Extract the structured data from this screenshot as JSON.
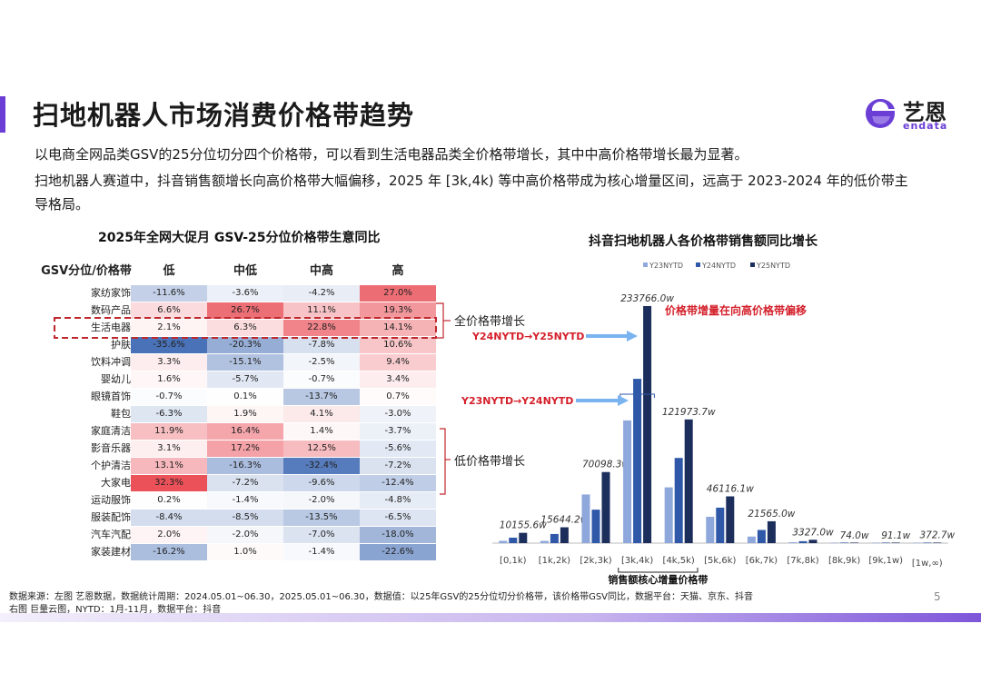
{
  "header": {
    "title": "扫地机器人市场消费价格带趋势",
    "logo_cn": "艺恩",
    "logo_en": "endata"
  },
  "description": {
    "line1": "以电商全网品类GSV的25分位切分四个价格带，可以看到生活电器品类全价格带增长，其中中高价格带增长最为显著。",
    "line2": "扫地机器人赛道中，抖音销售额增长向高价格带大幅偏移，2025 年 [3k,4k) 等中高价格带成为核心增量区间，远高于 2023-2024 年的低价带主",
    "line3": "导格局。"
  },
  "heatmap": {
    "title": "2025年全网大促月 GSV-25分位价格带生意同比",
    "corner_label": "GSV分位/价格带",
    "columns": [
      "低",
      "中低",
      "中高",
      "高"
    ],
    "rows": [
      {
        "label": "家纺家饰",
        "values": [
          "-11.6%",
          "-3.6%",
          "-4.2%",
          "27.0%"
        ],
        "nums": [
          -11.6,
          -3.6,
          -4.2,
          27.0
        ]
      },
      {
        "label": "数码产品",
        "values": [
          "6.6%",
          "26.7%",
          "11.1%",
          "19.3%"
        ],
        "nums": [
          6.6,
          26.7,
          11.1,
          19.3
        ]
      },
      {
        "label": "生活电器",
        "values": [
          "2.1%",
          "6.3%",
          "22.8%",
          "14.1%"
        ],
        "nums": [
          2.1,
          6.3,
          22.8,
          14.1
        ]
      },
      {
        "label": "护肤",
        "values": [
          "-35.6%",
          "-20.3%",
          "-7.8%",
          "10.6%"
        ],
        "nums": [
          -35.6,
          -20.3,
          -7.8,
          10.6
        ]
      },
      {
        "label": "饮料冲调",
        "values": [
          "3.3%",
          "-15.1%",
          "-2.5%",
          "9.4%"
        ],
        "nums": [
          3.3,
          -15.1,
          -2.5,
          9.4
        ]
      },
      {
        "label": "婴幼儿",
        "values": [
          "1.6%",
          "-5.7%",
          "-0.7%",
          "3.4%"
        ],
        "nums": [
          1.6,
          -5.7,
          -0.7,
          3.4
        ]
      },
      {
        "label": "眼镜首饰",
        "values": [
          "-0.7%",
          "0.1%",
          "-13.7%",
          "0.7%"
        ],
        "nums": [
          -0.7,
          0.1,
          -13.7,
          0.7
        ]
      },
      {
        "label": "鞋包",
        "values": [
          "-6.3%",
          "1.9%",
          "4.1%",
          "-3.0%"
        ],
        "nums": [
          -6.3,
          1.9,
          4.1,
          -3.0
        ]
      },
      {
        "label": "家庭清洁",
        "values": [
          "11.9%",
          "16.4%",
          "1.4%",
          "-3.7%"
        ],
        "nums": [
          11.9,
          16.4,
          1.4,
          -3.7
        ]
      },
      {
        "label": "影音乐器",
        "values": [
          "3.1%",
          "17.2%",
          "12.5%",
          "-5.6%"
        ],
        "nums": [
          3.1,
          17.2,
          12.5,
          -5.6
        ]
      },
      {
        "label": "个护清洁",
        "values": [
          "13.1%",
          "-16.3%",
          "-32.4%",
          "-7.2%"
        ],
        "nums": [
          13.1,
          -16.3,
          -32.4,
          -7.2
        ]
      },
      {
        "label": "大家电",
        "values": [
          "32.3%",
          "-7.2%",
          "-9.6%",
          "-12.4%"
        ],
        "nums": [
          32.3,
          -7.2,
          -9.6,
          -12.4
        ]
      },
      {
        "label": "运动服饰",
        "values": [
          "0.2%",
          "-1.4%",
          "-2.0%",
          "-4.8%"
        ],
        "nums": [
          0.2,
          -1.4,
          -2.0,
          -4.8
        ]
      },
      {
        "label": "服装配饰",
        "values": [
          "-8.4%",
          "-8.5%",
          "-13.5%",
          "-6.5%"
        ],
        "nums": [
          -8.4,
          -8.5,
          -13.5,
          -6.5
        ]
      },
      {
        "label": "汽车汽配",
        "values": [
          "2.0%",
          "-2.0%",
          "-7.0%",
          "-18.0%"
        ],
        "nums": [
          2.0,
          -2.0,
          -7.0,
          -18.0
        ]
      },
      {
        "label": "家装建材",
        "values": [
          "-16.2%",
          "1.0%",
          "-1.4%",
          "-22.6%"
        ],
        "nums": [
          -16.2,
          1.0,
          -1.4,
          -22.6
        ]
      }
    ],
    "bracket_top_label": "全价格带增长",
    "bracket_bottom_label": "低价格带增长",
    "colors": {
      "positive_max": "#e8424b",
      "negative_max": "#4a72b8",
      "neutral": "#ffffff"
    }
  },
  "chart_data": {
    "type": "bar",
    "title": "抖音扫地机器人各价格带销售额同比增长",
    "categories": [
      "[0,1k)",
      "[1k,2k)",
      "[2k,3k)",
      "[3k,4k)",
      "[4k,5k)",
      "[5k,6k)",
      "[6k,7k)",
      "[7k,8k)",
      "[8k,9k)",
      "[9k,1w)",
      "[1w,∞)"
    ],
    "series": [
      {
        "name": "Y23NYTD",
        "color": "#8fa8dc",
        "values": [
          2300,
          2200,
          48000,
          121000,
          55000,
          26000,
          6500,
          900,
          200,
          100,
          100
        ]
      },
      {
        "name": "Y24NYTD",
        "color": "#2f58a8",
        "values": [
          5400,
          9000,
          33000,
          162000,
          84000,
          35000,
          13000,
          1900,
          400,
          300,
          300
        ]
      },
      {
        "name": "Y25NYTD",
        "color": "#1c2e5c",
        "values": [
          10155.6,
          15644.2,
          70098.3,
          233766.0,
          121973.7,
          46116.1,
          21565.0,
          3327.0,
          74.0,
          91.1,
          372.7
        ]
      }
    ],
    "data_labels": [
      "10155.6w",
      "15644.2w",
      "70098.3w",
      "233766.0w",
      "121973.7w",
      "46116.1w",
      "21565.0w",
      "3327.0w",
      "74.0w",
      "91.1w",
      "372.7w"
    ],
    "ylim": [
      0,
      240000
    ],
    "legend": "top",
    "annotations": {
      "shift": "价格带增量在向高价格带偏移",
      "y24_y25": "Y24NYTD→Y25NYTD",
      "y23_y24": "Y23NYTD→Y24NYTD",
      "core": "销售额核心增量价格带"
    },
    "annotation_color": "#d4202b",
    "arrow_color": "#79b4f0"
  },
  "footer": {
    "line1": "数据来源：左图 艺恩数据，数据统计周期：2024.05.01~06.30，2025.05.01~06.30，数据值：以25年GSV的25分位切分价格带，该价格带GSV同比，数据平台：天猫、京东、抖音",
    "line2": "右图 巨量云图，NYTD：1月-11月，数据平台：抖音",
    "page": "5"
  }
}
